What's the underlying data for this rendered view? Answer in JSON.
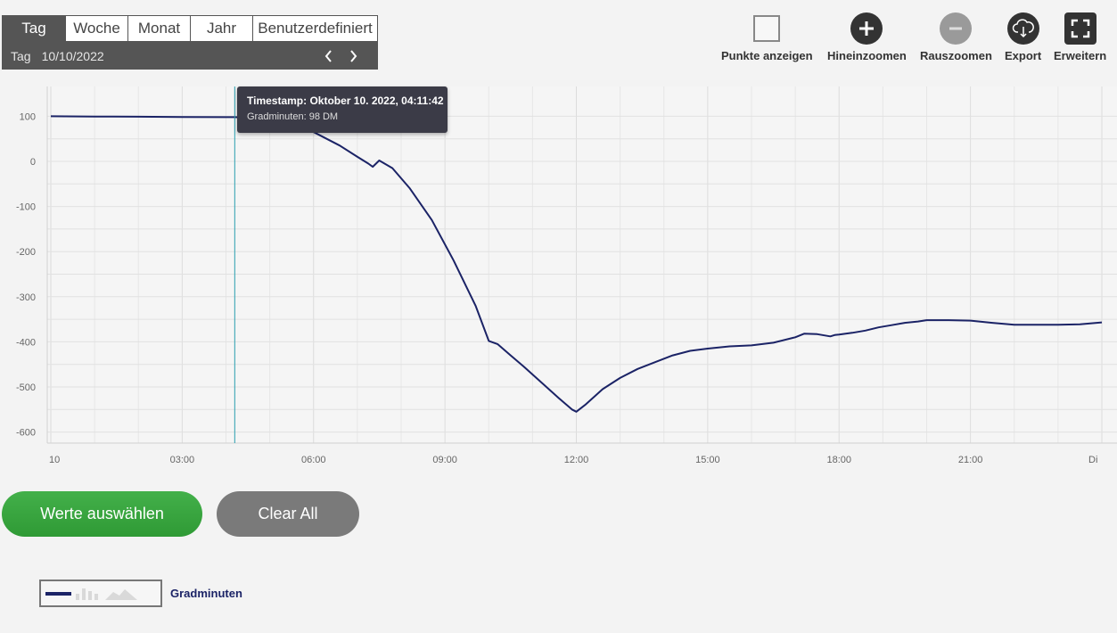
{
  "period_selector": {
    "tabs": [
      "Tag",
      "Woche",
      "Monat",
      "Jahr",
      "Benutzerdefiniert"
    ],
    "active_tab": "Tag",
    "date_label": "Tag",
    "date_value": "10/10/2022"
  },
  "toolbar": {
    "show_points": "Punkte anzeigen",
    "zoom_in": "Hineinzoomen",
    "zoom_out": "Rauszoomen",
    "export": "Export",
    "expand": "Erweitern"
  },
  "tooltip": {
    "title": "Timestamp: Oktober 10. 2022, 04:11:42",
    "value": "Gradminuten: 98 DM"
  },
  "buttons": {
    "select_values": "Werte auswählen",
    "clear_all": "Clear All"
  },
  "legend": {
    "series_name": "Gradminuten"
  },
  "colors": {
    "series": "#1b2366",
    "cursor": "#2a9fb0",
    "green_button": "#3aa640",
    "gray_button": "#7a7a7a",
    "tooltip_bg": "#3b3b47"
  },
  "chart_data": {
    "type": "line",
    "title": "",
    "xlabel": "",
    "ylabel": "",
    "x_tick_labels": [
      "10",
      "03:00",
      "06:00",
      "09:00",
      "12:00",
      "15:00",
      "18:00",
      "21:00",
      "Di"
    ],
    "y_tick_labels": [
      "100",
      "0",
      "-100",
      "-200",
      "-300",
      "-400",
      "-500",
      "-600"
    ],
    "xlim_hours": [
      0,
      24
    ],
    "ylim": [
      -620,
      165
    ],
    "grid": true,
    "cursor_hour": 4.2,
    "series": [
      {
        "name": "Gradminuten",
        "x_hours": [
          0.0,
          1.0,
          2.0,
          3.0,
          4.0,
          4.2,
          5.0,
          5.8,
          6.2,
          6.6,
          7.0,
          7.25,
          7.35,
          7.5,
          7.8,
          8.2,
          8.7,
          9.2,
          9.7,
          10.0,
          10.2,
          10.5,
          10.8,
          11.2,
          11.6,
          11.9,
          12.0,
          12.2,
          12.6,
          13.0,
          13.4,
          13.8,
          14.2,
          14.6,
          15.0,
          15.5,
          16.0,
          16.5,
          17.0,
          17.2,
          17.5,
          17.8,
          17.9,
          18.0,
          18.3,
          18.6,
          18.9,
          19.2,
          19.5,
          19.8,
          20.0,
          20.5,
          21.0,
          21.5,
          22.0,
          22.5,
          23.0,
          23.5,
          24.0
        ],
        "values": [
          100,
          99.5,
          99,
          98.5,
          98,
          98,
          95,
          75,
          55,
          35,
          10,
          -5,
          -12,
          2,
          -15,
          -60,
          -130,
          -220,
          -320,
          -398,
          -405,
          -430,
          -455,
          -490,
          -525,
          -550,
          -555,
          -540,
          -505,
          -480,
          -460,
          -445,
          -430,
          -420,
          -415,
          -410,
          -408,
          -402,
          -390,
          -382,
          -383,
          -388,
          -385,
          -384,
          -380,
          -375,
          -368,
          -363,
          -358,
          -355,
          -352,
          -352,
          -353,
          -358,
          -362,
          -362,
          -362,
          -361,
          -357
        ]
      }
    ]
  }
}
